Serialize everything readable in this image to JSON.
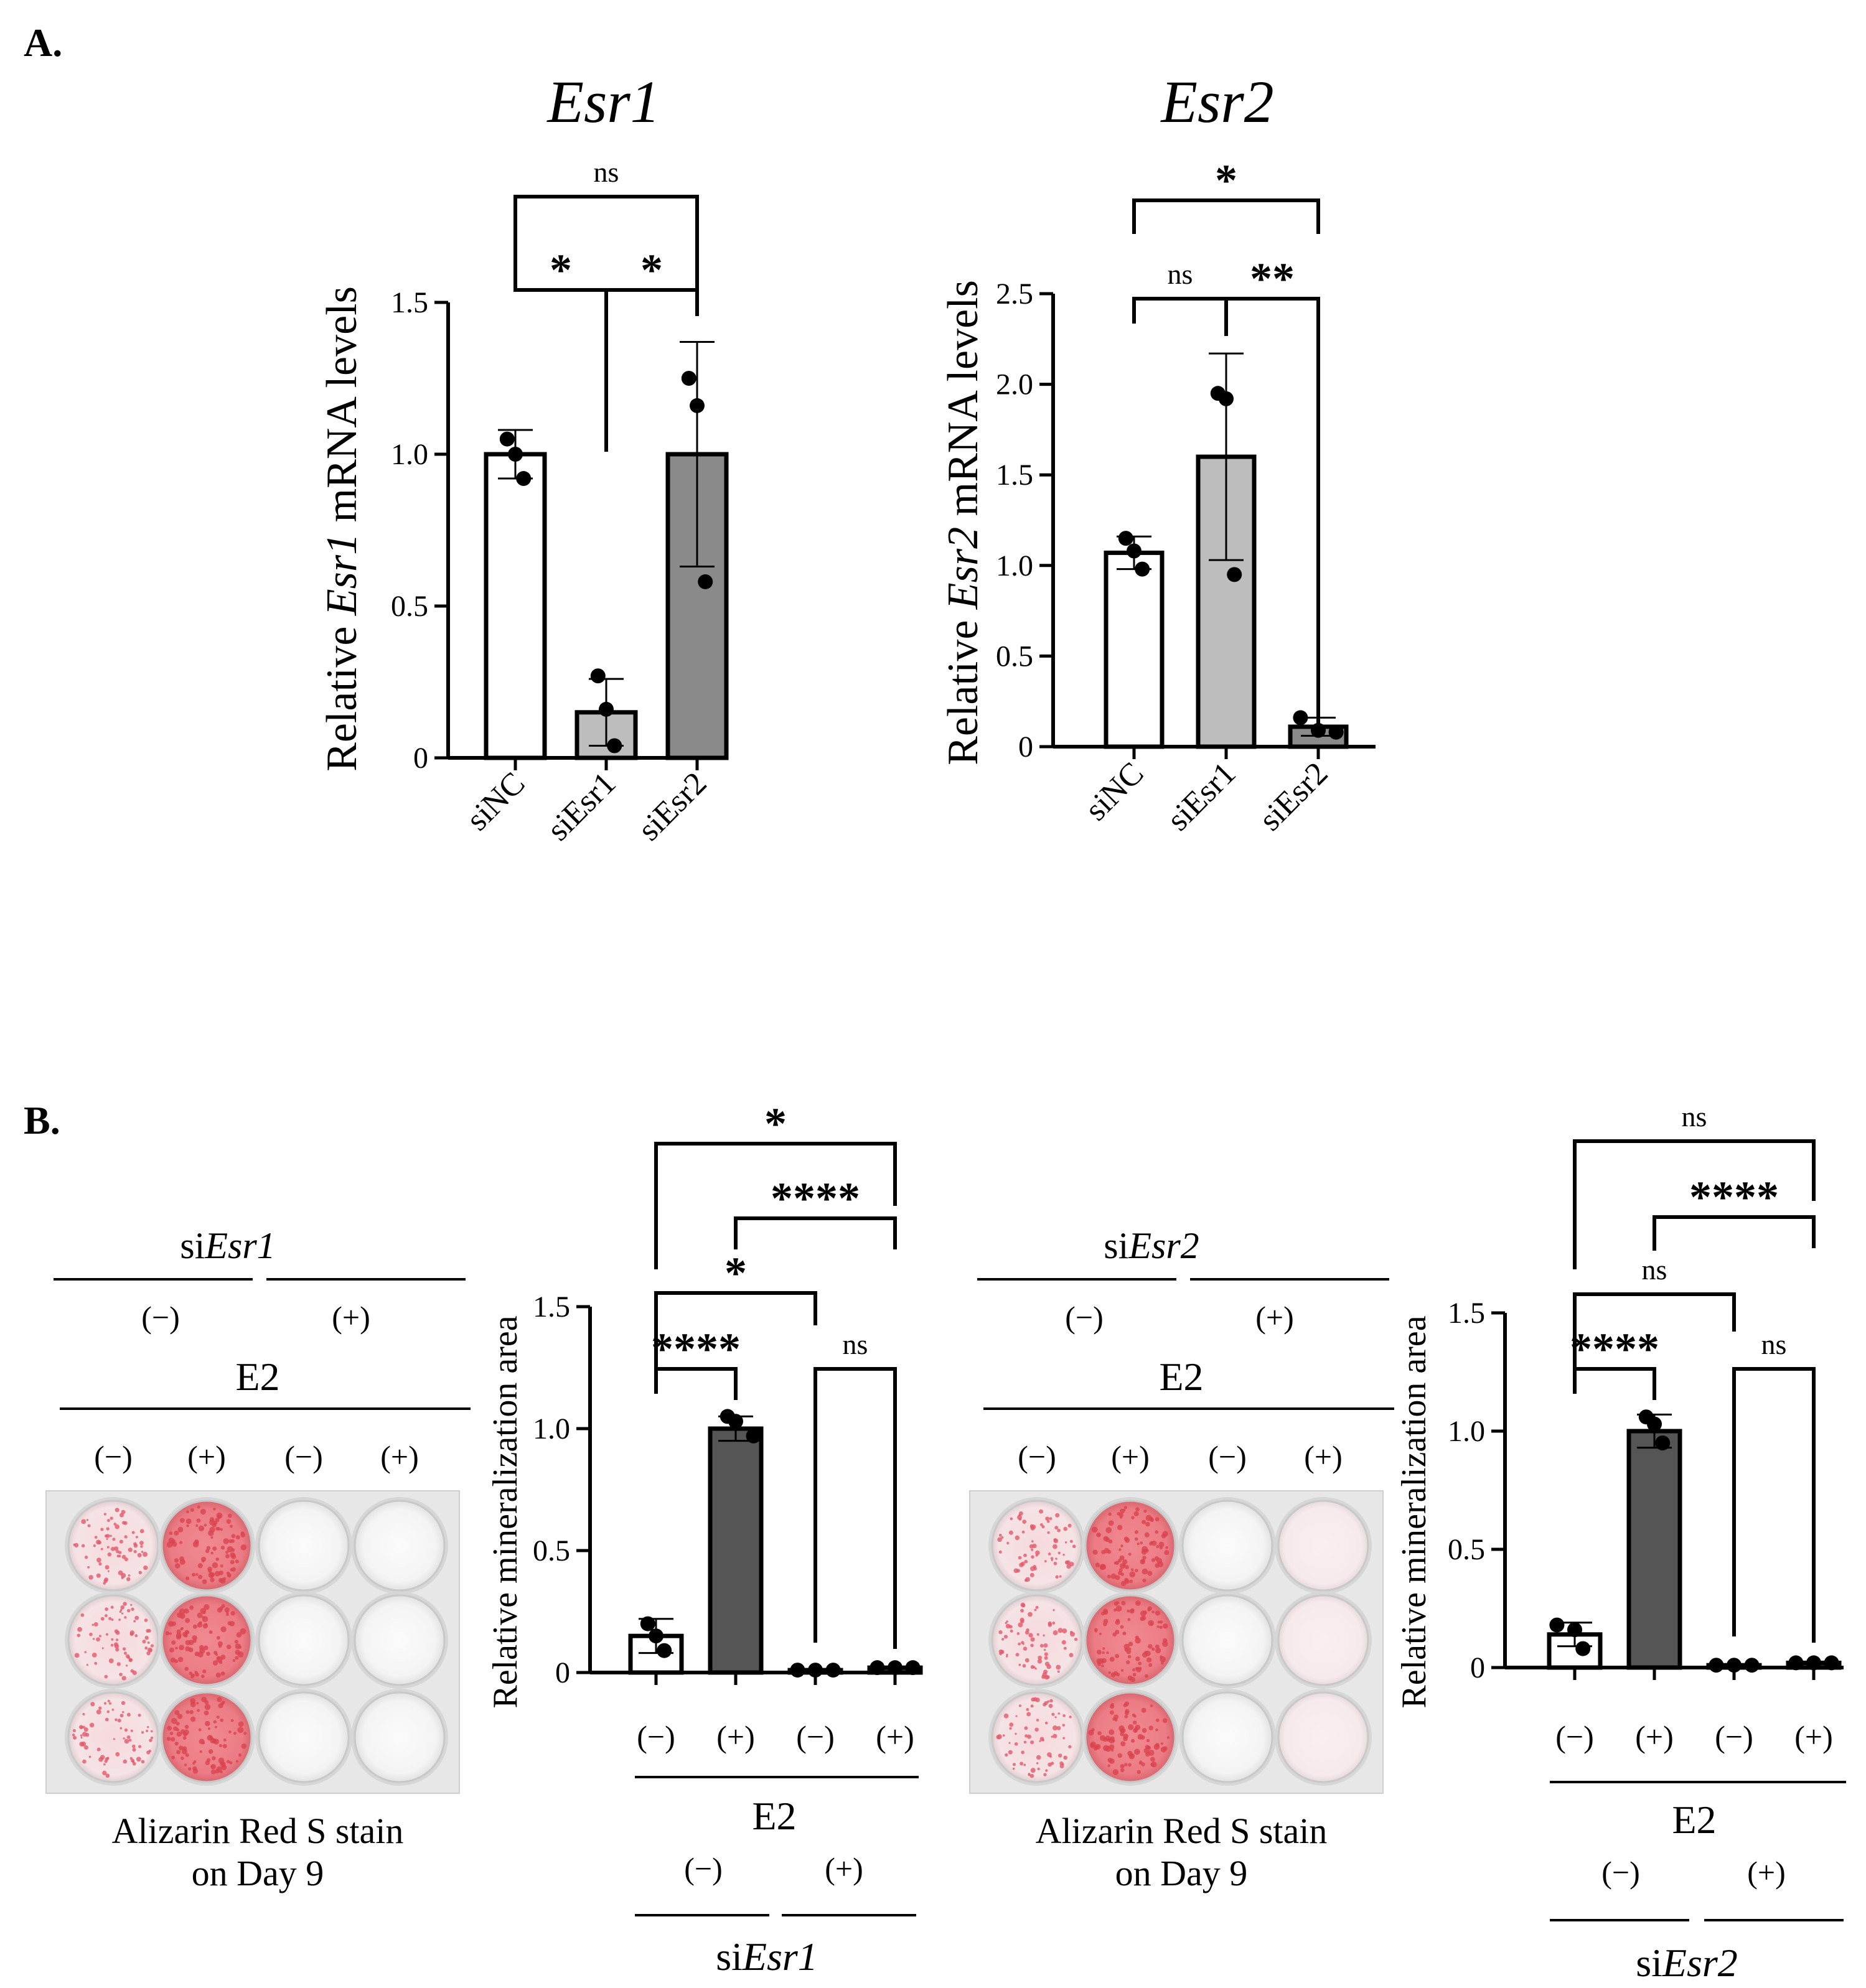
{
  "panel_a": {
    "label": "A.",
    "charts": [
      {
        "type": "bar",
        "title": "Esr1",
        "ylabel_pre": "Relative ",
        "ylabel_gene": "Esr1",
        "ylabel_post": " mRNA levels",
        "ylim": [
          0,
          1.5
        ],
        "yticks": [
          "0",
          "0.5",
          "1.0",
          "1.5"
        ],
        "categories": [
          "siNC",
          "siEsr1",
          "siEsr2"
        ],
        "values": [
          1.0,
          0.15,
          1.0
        ],
        "errors": [
          0.08,
          0.11,
          0.37
        ],
        "points": [
          [
            1.05,
            1.0,
            0.92
          ],
          [
            0.27,
            0.16,
            0.04
          ],
          [
            1.25,
            1.16,
            0.58
          ]
        ],
        "fills": [
          "#ffffff",
          "#bdbdbd",
          "#8a8a8a"
        ],
        "comparisons": [
          {
            "label": "*",
            "from": 0,
            "to": 1
          },
          {
            "label": "*",
            "from": 1,
            "to": 2
          },
          {
            "label": "ns",
            "from": 0,
            "to": 2
          }
        ]
      },
      {
        "type": "bar",
        "title": "Esr2",
        "ylabel_pre": "Relative ",
        "ylabel_gene": "Esr2",
        "ylabel_post": " mRNA levels",
        "ylim": [
          0,
          2.5
        ],
        "yticks": [
          "0",
          "0.5",
          "1.0",
          "1.5",
          "2.0",
          "2.5"
        ],
        "categories": [
          "siNC",
          "siEsr1",
          "siEsr2"
        ],
        "values": [
          1.07,
          1.6,
          0.11
        ],
        "errors": [
          0.09,
          0.57,
          0.05
        ],
        "points": [
          [
            1.15,
            1.08,
            0.98
          ],
          [
            1.95,
            1.92,
            0.95
          ],
          [
            0.16,
            0.09,
            0.08
          ]
        ],
        "fills": [
          "#ffffff",
          "#bdbdbd",
          "#8a8a8a"
        ],
        "comparisons": [
          {
            "label": "ns",
            "from": 0,
            "to": 1
          },
          {
            "label": "**",
            "from": 1,
            "to": 2
          },
          {
            "label": "*",
            "from": 0,
            "to": 2
          }
        ]
      }
    ]
  },
  "panel_b": {
    "label": "B.",
    "plates": [
      {
        "si_pre": "si",
        "si_gene": "Esr1",
        "groups": [
          "(−)",
          "(+)"
        ],
        "e2_label": "E2",
        "col_labels": [
          "(−)",
          "(+)",
          "(−)",
          "(+)"
        ],
        "caption_line1": "Alizarin Red S stain",
        "caption_line2": "on Day 9",
        "well_stain": [
          "speckled",
          "dense",
          "none",
          "none"
        ]
      },
      {
        "si_pre": "si",
        "si_gene": "Esr2",
        "groups": [
          "(−)",
          "(+)"
        ],
        "e2_label": "E2",
        "col_labels": [
          "(−)",
          "(+)",
          "(−)",
          "(+)"
        ],
        "caption_line1": "Alizarin Red S stain",
        "caption_line2": "on Day 9",
        "well_stain": [
          "speckled",
          "dense",
          "none",
          "faint"
        ]
      }
    ],
    "charts": [
      {
        "type": "bar",
        "ylabel": "Relative mineralization area",
        "ylim": [
          0,
          1.5
        ],
        "yticks": [
          "0",
          "0.5",
          "1.0",
          "1.5"
        ],
        "categories": [
          "(−)",
          "(+)",
          "(−)",
          "(+)"
        ],
        "values": [
          0.15,
          1.0,
          0.01,
          0.02
        ],
        "errors": [
          0.07,
          0.05,
          0.005,
          0.005
        ],
        "points": [
          [
            0.2,
            0.15,
            0.09
          ],
          [
            1.05,
            1.03,
            0.97
          ],
          [
            0.01,
            0.01,
            0.01
          ],
          [
            0.02,
            0.02,
            0.02
          ]
        ],
        "fills": [
          "#ffffff",
          "#555555",
          "#ffffff",
          "#555555"
        ],
        "e2_label": "E2",
        "groups": [
          "(−)",
          "(+)"
        ],
        "si_pre": "si",
        "si_gene": "Esr1",
        "comparisons": [
          {
            "label": "****",
            "from": 0,
            "to": 1
          },
          {
            "label": "ns",
            "from": 2,
            "to": 3
          },
          {
            "label": "*",
            "from": 0,
            "to": 2
          },
          {
            "label": "****",
            "from": 1,
            "to": 3
          },
          {
            "label": "*",
            "from": 0,
            "to": 3
          }
        ]
      },
      {
        "type": "bar",
        "ylabel": "Relative mineralization area",
        "ylim": [
          0,
          1.5
        ],
        "yticks": [
          "0",
          "0.5",
          "1.0",
          "1.5"
        ],
        "categories": [
          "(−)",
          "(+)",
          "(−)",
          "(+)"
        ],
        "values": [
          0.14,
          1.0,
          0.01,
          0.02
        ],
        "errors": [
          0.05,
          0.07,
          0.005,
          0.005
        ],
        "points": [
          [
            0.18,
            0.16,
            0.08
          ],
          [
            1.06,
            1.03,
            0.95
          ],
          [
            0.01,
            0.01,
            0.01
          ],
          [
            0.02,
            0.02,
            0.02
          ]
        ],
        "fills": [
          "#ffffff",
          "#555555",
          "#ffffff",
          "#555555"
        ],
        "e2_label": "E2",
        "groups": [
          "(−)",
          "(+)"
        ],
        "si_pre": "si",
        "si_gene": "Esr2",
        "comparisons": [
          {
            "label": "****",
            "from": 0,
            "to": 1
          },
          {
            "label": "ns",
            "from": 2,
            "to": 3
          },
          {
            "label": "ns",
            "from": 0,
            "to": 2
          },
          {
            "label": "****",
            "from": 1,
            "to": 3
          },
          {
            "label": "ns",
            "from": 0,
            "to": 3
          }
        ]
      }
    ]
  }
}
